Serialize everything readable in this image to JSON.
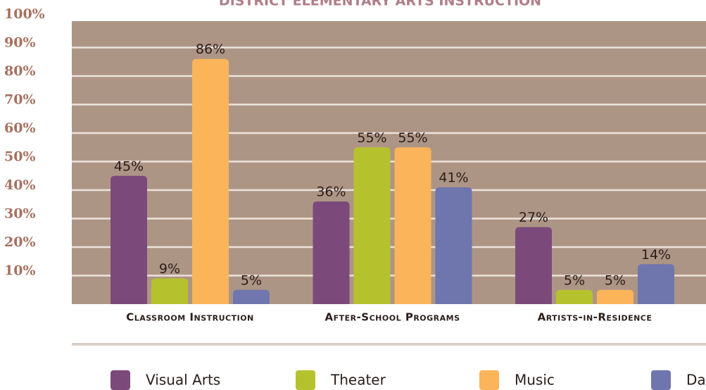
{
  "chart_data": {
    "type": "bar",
    "title": "District Elementary Arts Instruction",
    "categories": [
      "Classroom Instruction",
      "After-School Programs",
      "Artists-in-Residence"
    ],
    "series": [
      {
        "name": "Visual Arts",
        "color": "#7b4a7a",
        "values": [
          45,
          36,
          27
        ],
        "value_labels": [
          "45%",
          "36%",
          "27%"
        ]
      },
      {
        "name": "Theater",
        "color": "#b5c22e",
        "values": [
          9,
          55,
          5
        ],
        "value_labels": [
          "9%",
          "55%",
          "5%"
        ]
      },
      {
        "name": "Music",
        "color": "#fbb45a",
        "values": [
          86,
          55,
          5
        ],
        "value_labels": [
          "86%",
          "55%",
          "5%"
        ]
      },
      {
        "name": "Dance",
        "color": "#6f75ad",
        "values": [
          5,
          41,
          14
        ],
        "value_labels": [
          "5%",
          "41%",
          "14%"
        ]
      }
    ],
    "ylim": [
      0,
      100
    ],
    "yticks": [
      {
        "value": 10,
        "label": "10%"
      },
      {
        "value": 20,
        "label": "20%"
      },
      {
        "value": 30,
        "label": "30%"
      },
      {
        "value": 40,
        "label": "40%"
      },
      {
        "value": 50,
        "label": "50%"
      },
      {
        "value": 60,
        "label": "60%"
      },
      {
        "value": 70,
        "label": "70%"
      },
      {
        "value": 80,
        "label": "80%"
      },
      {
        "value": 90,
        "label": "90%"
      },
      {
        "value": 100,
        "label": "100%"
      }
    ],
    "grid": true,
    "legend": "bottom"
  }
}
